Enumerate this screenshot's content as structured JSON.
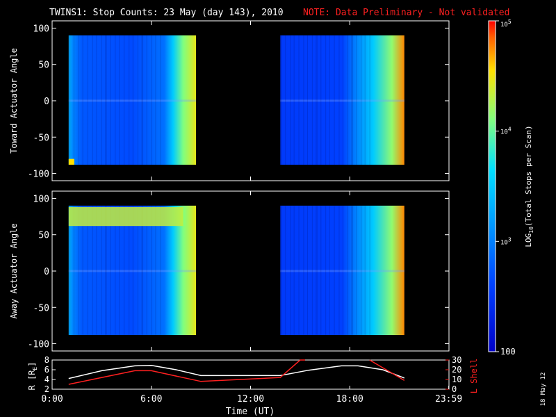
{
  "header": {
    "title": "TWINS1: Stop Counts: 23 May (day 143), 2010",
    "note": "NOTE: Data Preliminary - Not validated",
    "note_color": "#ff2020"
  },
  "stamp": "18 May 12",
  "chart_data": [
    {
      "type": "heatmap",
      "title": "",
      "ylabel": "Toward Actuator Angle",
      "xlabel": "",
      "xlim_hours": [
        0,
        24
      ],
      "ylim": [
        -110,
        110
      ],
      "yticks": [
        "100",
        "50",
        "0",
        "-50",
        "-100"
      ],
      "blocks_hours": [
        [
          1.0,
          8.7
        ],
        [
          13.8,
          21.3
        ]
      ],
      "angle_range": [
        -88,
        90
      ]
    },
    {
      "type": "heatmap",
      "title": "",
      "ylabel": "Away Actuator Angle",
      "xlabel": "",
      "xlim_hours": [
        0,
        24
      ],
      "ylim": [
        -110,
        110
      ],
      "yticks": [
        "100",
        "50",
        "0",
        "-50",
        "-100"
      ],
      "blocks_hours": [
        [
          1.0,
          8.7
        ],
        [
          13.8,
          21.3
        ]
      ],
      "angle_range": [
        -88,
        90
      ]
    },
    {
      "type": "line",
      "xlabel": "Time (UT)",
      "xticks": [
        "0:00",
        "6:00",
        "12:00",
        "18:00",
        "23:59"
      ],
      "y_left": {
        "label": "R [R",
        "label_sub": "E",
        "label_end": "]",
        "ticks": [
          "8",
          "6",
          "4",
          "2"
        ],
        "lim": [
          2,
          8
        ]
      },
      "y_right": {
        "label": "L Shell",
        "ticks": [
          "30",
          "20",
          "10",
          "0"
        ],
        "lim": [
          0,
          30
        ],
        "color": "#ff2020"
      },
      "series": [
        {
          "axis": "left",
          "color": "#ffffff",
          "x": [
            1.0,
            3.0,
            5.0,
            6.0,
            7.5,
            9.0,
            11.0,
            13.8,
            15.5,
            17.5,
            18.5,
            20.0,
            21.3
          ],
          "y": [
            4.2,
            5.8,
            6.8,
            6.9,
            6.0,
            4.8,
            4.8,
            4.8,
            5.9,
            6.8,
            6.8,
            6.0,
            4.3
          ]
        },
        {
          "axis": "right",
          "color": "#ff2020",
          "x": [
            1.0,
            5.0,
            6.0,
            9.0,
            13.8,
            15.0,
            15.3
          ],
          "y": [
            5,
            19,
            19,
            8,
            12,
            30,
            30
          ]
        },
        {
          "axis": "right",
          "color": "#ff2020",
          "x": [
            19.2,
            21.3
          ],
          "y": [
            30,
            9
          ]
        }
      ]
    }
  ],
  "colorbar": {
    "label_prefix": "LOG",
    "label_sub": "10",
    "label_suffix": "(Total Stops per Scan)",
    "ticks": [
      {
        "base": "10",
        "exp": "5",
        "log": 5.0
      },
      {
        "base": "10",
        "exp": "4",
        "log": 4.0
      },
      {
        "base": "10",
        "exp": "3",
        "log": 3.0
      },
      {
        "base": "100",
        "exp": "",
        "log": 2.0
      }
    ],
    "range": [
      2,
      5
    ]
  }
}
